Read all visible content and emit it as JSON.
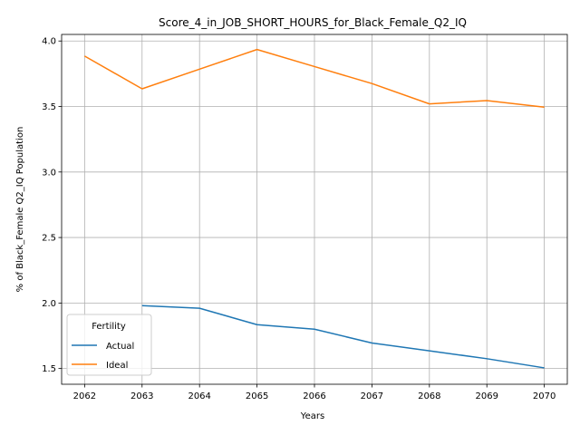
{
  "chart_data": {
    "type": "line",
    "title": "Score_4_in_JOB_SHORT_HOURS_for_Black_Female_Q2_IQ",
    "xlabel": "Years",
    "ylabel": "% of Black_Female Q2_IQ Population",
    "x": [
      2062,
      2063,
      2064,
      2065,
      2066,
      2067,
      2068,
      2069,
      2070
    ],
    "xlim": [
      2061.6,
      2070.4
    ],
    "ylim": [
      1.38,
      4.05
    ],
    "yticks": [
      1.5,
      2.0,
      2.5,
      3.0,
      3.5,
      4.0
    ],
    "ytick_labels": [
      "1.5",
      "2.0",
      "2.5",
      "3.0",
      "3.5",
      "4.0"
    ],
    "grid": true,
    "legend": {
      "title": "Fertility",
      "placement": "lower-left"
    },
    "series": [
      {
        "name": "Actual",
        "color": "#1f77b4",
        "values": [
          null,
          1.98,
          1.96,
          1.835,
          1.8,
          1.695,
          1.635,
          1.575,
          1.505
        ]
      },
      {
        "name": "Ideal",
        "color": "#ff7f0e",
        "values": [
          3.885,
          3.635,
          3.785,
          3.935,
          3.805,
          3.675,
          3.52,
          3.545,
          3.495
        ]
      }
    ]
  }
}
